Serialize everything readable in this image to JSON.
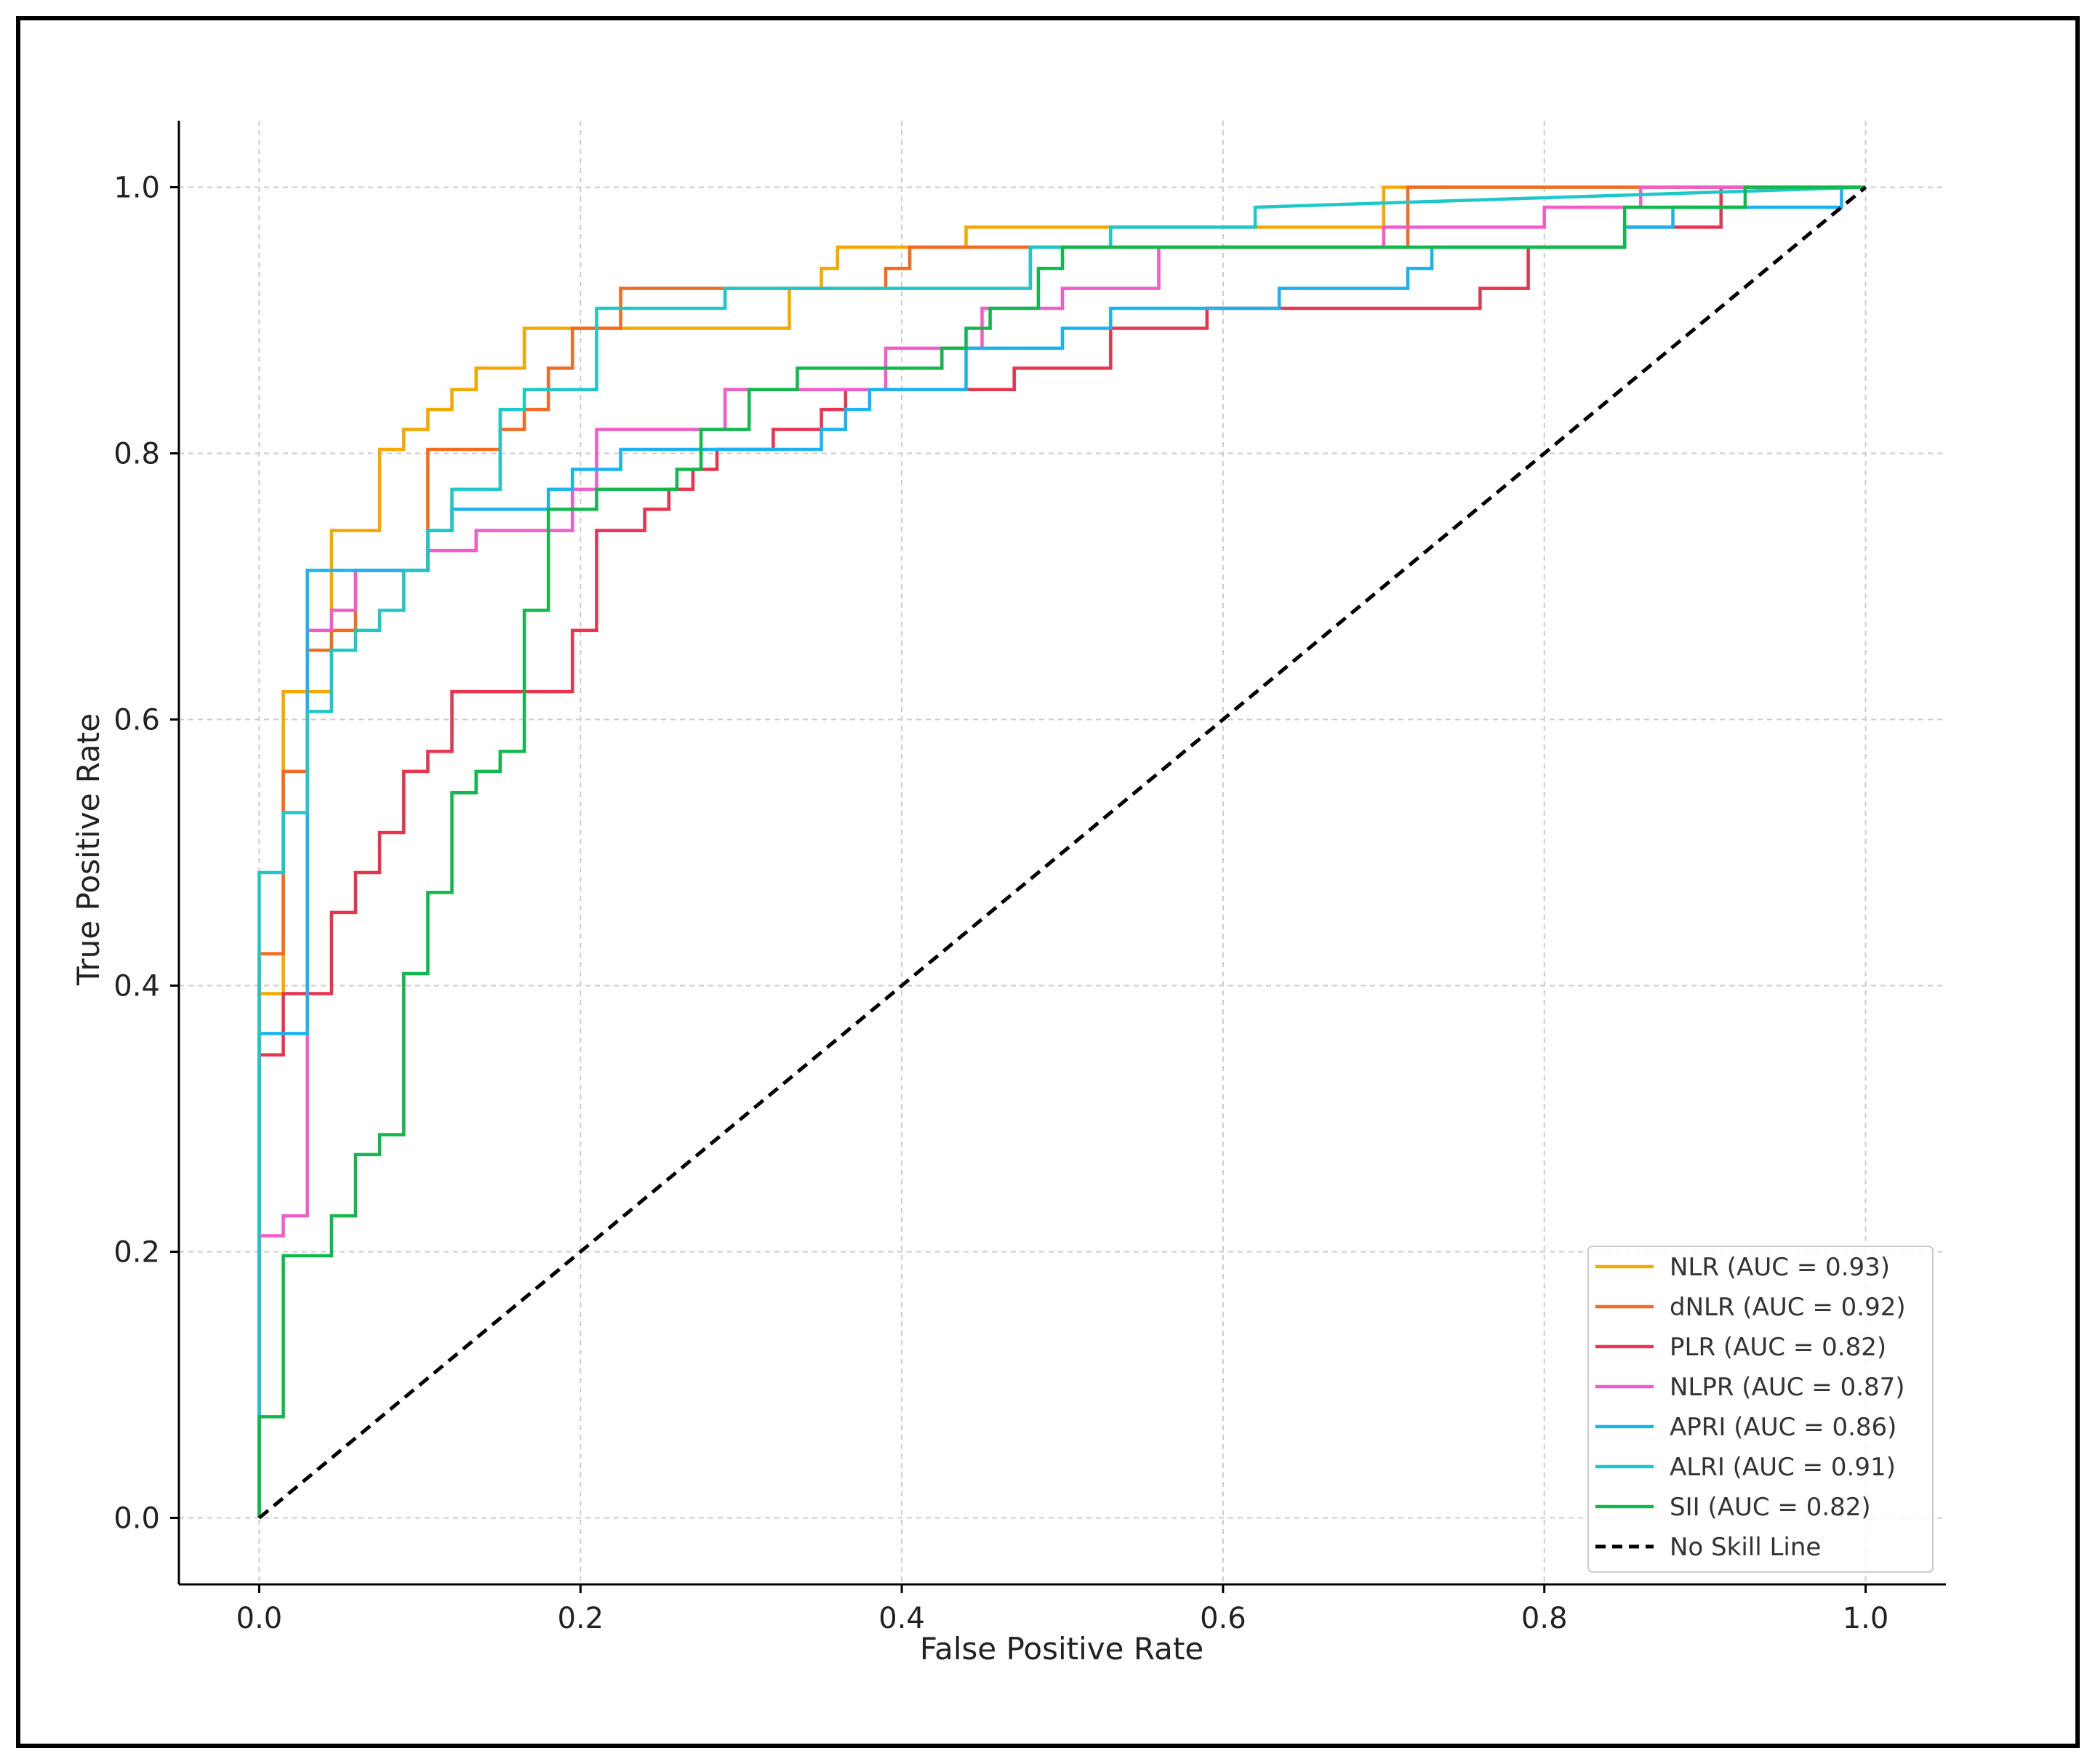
{
  "chart_data": {
    "type": "line",
    "title": "",
    "xlabel": "False Positive Rate",
    "ylabel": "True Positive Rate",
    "xlim": [
      -0.05,
      1.05
    ],
    "ylim": [
      -0.05,
      1.05
    ],
    "xticks": [
      0.0,
      0.2,
      0.4,
      0.6,
      0.8,
      1.0
    ],
    "yticks": [
      0.0,
      0.2,
      0.4,
      0.6,
      0.8,
      1.0
    ],
    "xtick_labels": [
      "0.0",
      "0.2",
      "0.4",
      "0.6",
      "0.8",
      "1.0"
    ],
    "ytick_labels": [
      "0.0",
      "0.2",
      "0.4",
      "0.6",
      "0.8",
      "1.0"
    ],
    "grid": true,
    "legend_position": "bottom-right",
    "series": [
      {
        "name": "NLR (AUC = 0.93)",
        "color": "#F5A800",
        "x": [
          0,
          0,
          0.015,
          0.015,
          0.03,
          0.03,
          0.045,
          0.045,
          0.075,
          0.075,
          0.09,
          0.09,
          0.105,
          0.105,
          0.12,
          0.12,
          0.135,
          0.135,
          0.165,
          0.165,
          0.33,
          0.33,
          0.35,
          0.35,
          0.36,
          0.36,
          0.44,
          0.44,
          0.7,
          0.7,
          1.0
        ],
        "y": [
          0,
          0.394,
          0.394,
          0.621,
          0.621,
          0.621,
          0.621,
          0.742,
          0.742,
          0.803,
          0.803,
          0.818,
          0.818,
          0.833,
          0.833,
          0.848,
          0.848,
          0.864,
          0.864,
          0.894,
          0.894,
          0.924,
          0.924,
          0.939,
          0.939,
          0.955,
          0.955,
          0.97,
          0.97,
          1.0,
          1.0
        ]
      },
      {
        "name": "dNLR (AUC = 0.92)",
        "color": "#F26B21",
        "x": [
          0,
          0,
          0.015,
          0.015,
          0.03,
          0.03,
          0.045,
          0.045,
          0.06,
          0.06,
          0.105,
          0.105,
          0.15,
          0.15,
          0.165,
          0.165,
          0.18,
          0.18,
          0.195,
          0.195,
          0.225,
          0.225,
          0.39,
          0.39,
          0.405,
          0.405,
          0.715,
          0.715,
          1.0
        ],
        "y": [
          0,
          0.424,
          0.424,
          0.561,
          0.561,
          0.652,
          0.652,
          0.667,
          0.667,
          0.712,
          0.712,
          0.803,
          0.803,
          0.818,
          0.818,
          0.833,
          0.833,
          0.864,
          0.864,
          0.894,
          0.894,
          0.924,
          0.924,
          0.939,
          0.939,
          0.955,
          0.955,
          1.0,
          1.0
        ]
      },
      {
        "name": "PLR (AUC = 0.82)",
        "color": "#E8344E",
        "x": [
          0,
          0,
          0.015,
          0.015,
          0.045,
          0.045,
          0.06,
          0.06,
          0.075,
          0.075,
          0.09,
          0.09,
          0.105,
          0.105,
          0.12,
          0.12,
          0.195,
          0.195,
          0.21,
          0.21,
          0.24,
          0.24,
          0.255,
          0.255,
          0.27,
          0.27,
          0.285,
          0.285,
          0.32,
          0.32,
          0.35,
          0.35,
          0.365,
          0.365,
          0.43,
          0.43,
          0.47,
          0.47,
          0.53,
          0.53,
          0.59,
          0.59,
          0.76,
          0.76,
          0.79,
          0.79,
          0.85,
          0.85,
          0.91,
          0.91,
          1.0
        ],
        "y": [
          0,
          0.348,
          0.348,
          0.394,
          0.394,
          0.455,
          0.455,
          0.485,
          0.485,
          0.515,
          0.515,
          0.561,
          0.561,
          0.576,
          0.576,
          0.621,
          0.621,
          0.667,
          0.667,
          0.742,
          0.742,
          0.758,
          0.758,
          0.773,
          0.773,
          0.788,
          0.788,
          0.803,
          0.803,
          0.818,
          0.818,
          0.833,
          0.833,
          0.848,
          0.848,
          0.848,
          0.848,
          0.864,
          0.864,
          0.894,
          0.894,
          0.909,
          0.909,
          0.924,
          0.924,
          0.955,
          0.955,
          0.97,
          0.97,
          1.0,
          1.0
        ]
      },
      {
        "name": "NLPR (AUC = 0.87)",
        "color": "#F25CC8",
        "x": [
          0,
          0,
          0.015,
          0.015,
          0.03,
          0.03,
          0.045,
          0.045,
          0.06,
          0.06,
          0.105,
          0.105,
          0.135,
          0.135,
          0.195,
          0.195,
          0.21,
          0.21,
          0.29,
          0.29,
          0.39,
          0.39,
          0.45,
          0.45,
          0.5,
          0.5,
          0.56,
          0.56,
          0.7,
          0.7,
          0.8,
          0.8,
          0.86,
          0.86,
          1.0
        ],
        "y": [
          0,
          0.212,
          0.212,
          0.227,
          0.227,
          0.667,
          0.667,
          0.682,
          0.682,
          0.712,
          0.712,
          0.727,
          0.727,
          0.742,
          0.742,
          0.773,
          0.773,
          0.818,
          0.818,
          0.848,
          0.848,
          0.879,
          0.879,
          0.909,
          0.909,
          0.924,
          0.924,
          0.955,
          0.955,
          0.97,
          0.97,
          0.985,
          0.985,
          1.0,
          1.0
        ]
      },
      {
        "name": "APRI (AUC = 0.86)",
        "color": "#1AB3F0",
        "x": [
          0,
          0,
          0.03,
          0.03,
          0.105,
          0.105,
          0.12,
          0.12,
          0.18,
          0.18,
          0.195,
          0.195,
          0.225,
          0.225,
          0.255,
          0.255,
          0.35,
          0.35,
          0.365,
          0.365,
          0.38,
          0.38,
          0.44,
          0.44,
          0.5,
          0.5,
          0.53,
          0.53,
          0.635,
          0.635,
          0.715,
          0.715,
          0.73,
          0.73,
          0.85,
          0.85,
          0.88,
          0.88,
          0.91,
          0.91,
          0.985,
          0.985,
          1.0
        ],
        "y": [
          0,
          0.364,
          0.364,
          0.712,
          0.712,
          0.742,
          0.742,
          0.758,
          0.758,
          0.773,
          0.773,
          0.788,
          0.788,
          0.803,
          0.803,
          0.803,
          0.803,
          0.818,
          0.818,
          0.833,
          0.833,
          0.848,
          0.848,
          0.879,
          0.879,
          0.894,
          0.894,
          0.909,
          0.909,
          0.924,
          0.924,
          0.939,
          0.939,
          0.955,
          0.955,
          0.97,
          0.97,
          0.985,
          0.985,
          0.985,
          0.985,
          1.0,
          1.0
        ]
      },
      {
        "name": "ALRI (AUC = 0.91)",
        "color": "#1EC8C8",
        "x": [
          0,
          0,
          0.015,
          0.015,
          0.03,
          0.03,
          0.045,
          0.045,
          0.06,
          0.06,
          0.075,
          0.075,
          0.09,
          0.09,
          0.105,
          0.105,
          0.12,
          0.12,
          0.15,
          0.15,
          0.165,
          0.165,
          0.21,
          0.21,
          0.29,
          0.29,
          0.48,
          0.48,
          0.53,
          0.53,
          0.62,
          0.62,
          1.0
        ],
        "y": [
          0,
          0.485,
          0.485,
          0.53,
          0.53,
          0.606,
          0.606,
          0.652,
          0.652,
          0.667,
          0.667,
          0.682,
          0.682,
          0.712,
          0.712,
          0.742,
          0.742,
          0.773,
          0.773,
          0.833,
          0.833,
          0.848,
          0.848,
          0.909,
          0.909,
          0.924,
          0.924,
          0.955,
          0.955,
          0.97,
          0.97,
          0.985,
          1.0
        ]
      },
      {
        "name": "SII (AUC = 0.82)",
        "color": "#12B84C",
        "x": [
          0,
          0,
          0.015,
          0.015,
          0.045,
          0.045,
          0.06,
          0.06,
          0.075,
          0.075,
          0.09,
          0.09,
          0.105,
          0.105,
          0.12,
          0.12,
          0.135,
          0.135,
          0.15,
          0.15,
          0.165,
          0.165,
          0.18,
          0.18,
          0.21,
          0.21,
          0.26,
          0.26,
          0.275,
          0.275,
          0.305,
          0.305,
          0.335,
          0.335,
          0.425,
          0.425,
          0.44,
          0.44,
          0.455,
          0.455,
          0.485,
          0.485,
          0.5,
          0.5,
          0.85,
          0.85,
          0.925,
          0.925,
          1.0
        ],
        "y": [
          0,
          0.076,
          0.076,
          0.197,
          0.197,
          0.227,
          0.227,
          0.273,
          0.273,
          0.288,
          0.288,
          0.409,
          0.409,
          0.47,
          0.47,
          0.545,
          0.545,
          0.561,
          0.561,
          0.576,
          0.576,
          0.682,
          0.682,
          0.758,
          0.758,
          0.773,
          0.773,
          0.788,
          0.788,
          0.818,
          0.818,
          0.848,
          0.848,
          0.864,
          0.864,
          0.879,
          0.879,
          0.894,
          0.894,
          0.909,
          0.909,
          0.939,
          0.939,
          0.955,
          0.955,
          0.985,
          0.985,
          1.0,
          1.0
        ]
      },
      {
        "name": "No Skill Line",
        "color": "#000000",
        "dashed": true,
        "x": [
          0,
          1.0
        ],
        "y": [
          0,
          1.0
        ]
      }
    ]
  }
}
